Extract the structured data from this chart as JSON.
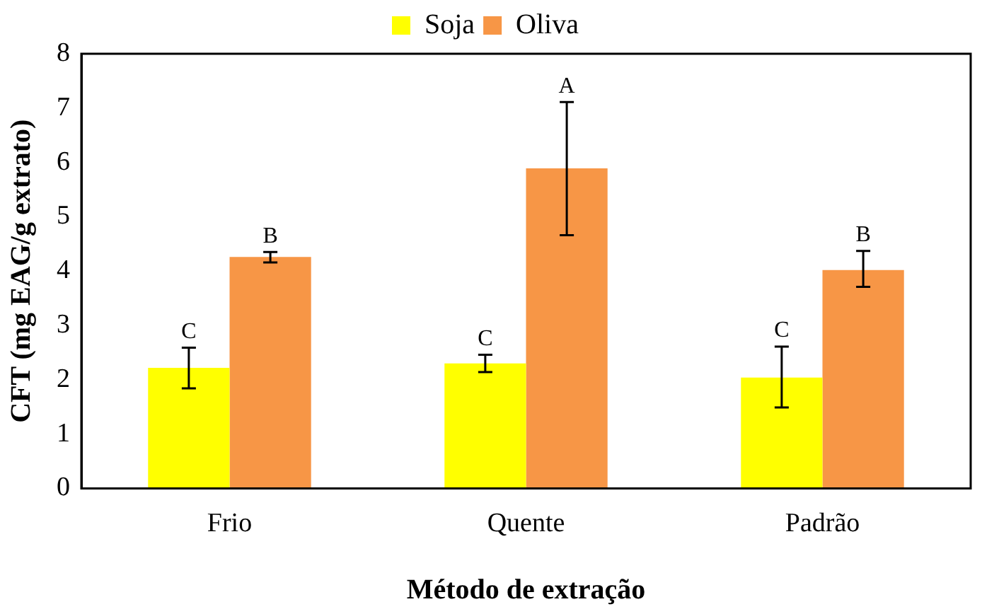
{
  "chart_data": {
    "type": "bar",
    "xlabel": "Método de extração",
    "ylabel": "CFT (mg EAG/g extrato)",
    "categories": [
      "Frio",
      "Quente",
      "Padrão"
    ],
    "series": [
      {
        "name": "Soja",
        "color": "#ffff00",
        "values": [
          2.22,
          2.3,
          2.04
        ],
        "errors": [
          [
            1.84,
            2.59
          ],
          [
            2.14,
            2.46
          ],
          [
            1.49,
            2.61
          ]
        ]
      },
      {
        "name": "Oliva",
        "color": "#f79646",
        "values": [
          4.26,
          5.89,
          4.02
        ],
        "errors": [
          [
            4.16,
            4.35
          ],
          [
            4.66,
            7.11
          ],
          [
            3.71,
            4.37
          ]
        ]
      }
    ],
    "ylim": [
      0,
      8
    ],
    "yticks": [
      0,
      1,
      2,
      3,
      4,
      5,
      6,
      7,
      8
    ],
    "grid": false,
    "legend": "top",
    "annotations": [
      "C",
      "B",
      "C",
      "A",
      "C",
      "B"
    ]
  }
}
